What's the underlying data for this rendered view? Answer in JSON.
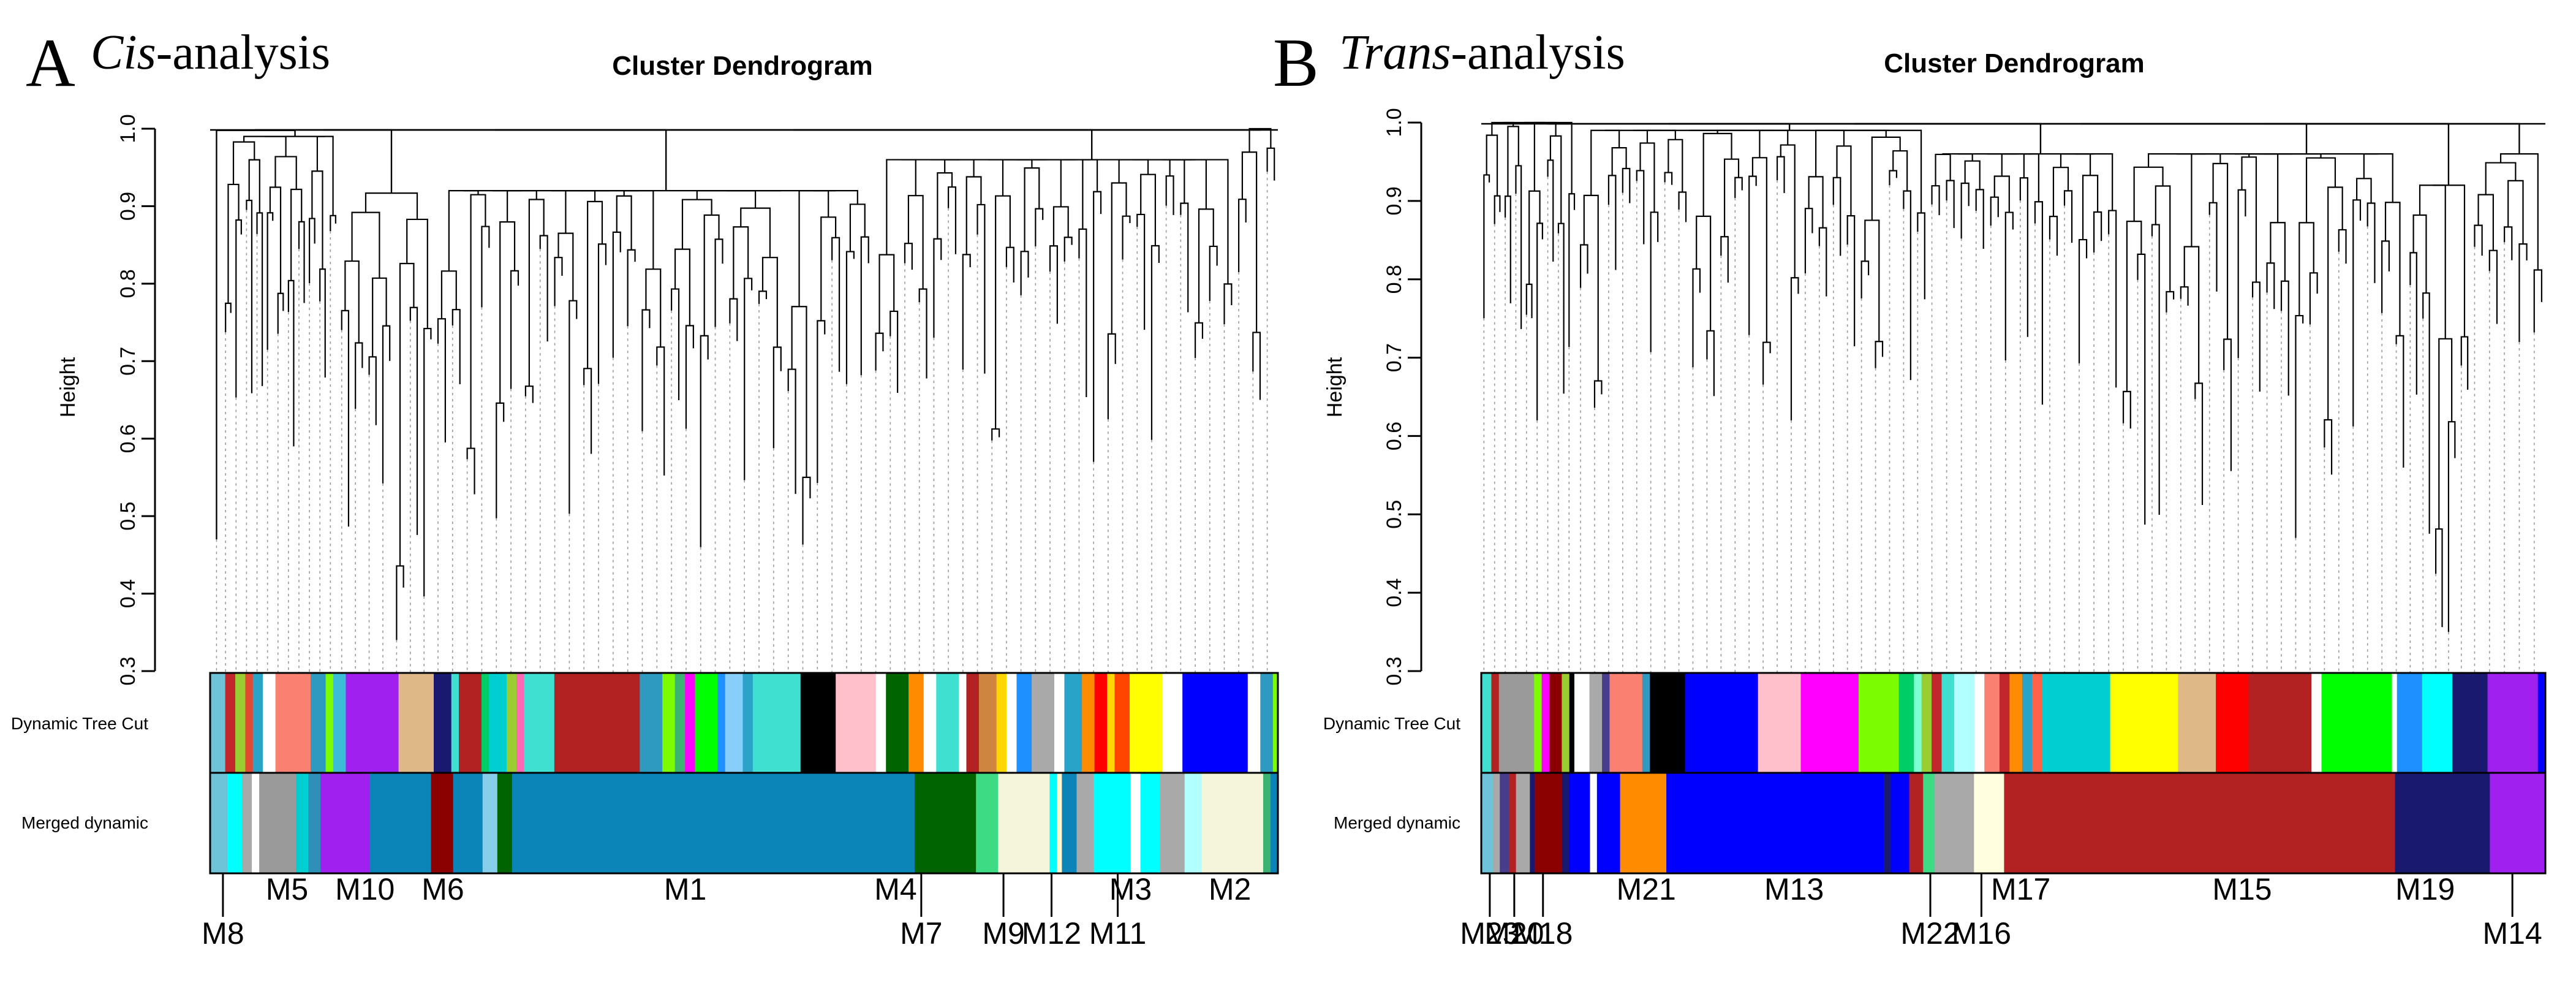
{
  "chart_data": [
    {
      "panel_letter": "A",
      "panel_title_italic": "Cis",
      "panel_title_rest": "-analysis",
      "type": "dendrogram",
      "title": "Cluster Dendrogram",
      "ylabel": "Height",
      "ylim": [
        0.3,
        1.0
      ],
      "yticks": [
        "0.3",
        "0.4",
        "0.5",
        "0.6",
        "0.7",
        "0.8",
        "0.9",
        "1.0"
      ],
      "row_labels": [
        "Dynamic Tree Cut",
        "Merged dynamic"
      ],
      "dendrogram_subtrees": [
        {
          "start": 0.0,
          "end": 0.012,
          "top": 0.98,
          "min": 0.47,
          "branches": 1
        },
        {
          "start": 0.012,
          "end": 0.12,
          "top": 0.99,
          "min": 0.59,
          "branches": 22
        },
        {
          "start": 0.12,
          "end": 0.21,
          "top": 0.92,
          "min": 0.34,
          "branches": 14
        },
        {
          "start": 0.21,
          "end": 0.62,
          "top": 0.92,
          "min": 0.46,
          "branches": 60
        },
        {
          "start": 0.62,
          "end": 0.96,
          "top": 0.96,
          "min": 0.57,
          "branches": 50
        },
        {
          "start": 0.96,
          "end": 1.0,
          "top": 1.0,
          "min": 0.65,
          "branches": 6
        }
      ],
      "dynamic_tree_cut": [
        [
          "#6ec3d8",
          0.012
        ],
        [
          "#c1272d",
          0.008
        ],
        [
          "#9acd32",
          0.008
        ],
        [
          "#e34a33",
          0.006
        ],
        [
          "#2aa3c8",
          0.008
        ],
        [
          "#ffffff",
          0.01
        ],
        [
          "#fa8072",
          0.028
        ],
        [
          "#2e9ac0",
          0.012
        ],
        [
          "#7cfc00",
          0.006
        ],
        [
          "#3bbdd8",
          0.01
        ],
        [
          "#a020f0",
          0.042
        ],
        [
          "#deb887",
          0.028
        ],
        [
          "#191970",
          0.014
        ],
        [
          "#40e0d0",
          0.006
        ],
        [
          "#b22222",
          0.018
        ],
        [
          "#00cd66",
          0.006
        ],
        [
          "#00ced1",
          0.014
        ],
        [
          "#9acd32",
          0.008
        ],
        [
          "#ff69b4",
          0.006
        ],
        [
          "#40e0d0",
          0.024
        ],
        [
          "#b22222",
          0.068
        ],
        [
          "#2e9ac0",
          0.018
        ],
        [
          "#7cfc00",
          0.01
        ],
        [
          "#3cb371",
          0.008
        ],
        [
          "#ff00ff",
          0.008
        ],
        [
          "#00ff00",
          0.018
        ],
        [
          "#1e90ff",
          0.006
        ],
        [
          "#87cefa",
          0.014
        ],
        [
          "#2aa3c8",
          0.008
        ],
        [
          "#40e0d0",
          0.038
        ],
        [
          "#000000",
          0.028
        ],
        [
          "#ffc0cb",
          0.032
        ],
        [
          "#ffffff",
          0.008
        ],
        [
          "#006400",
          0.018
        ],
        [
          "#ff8c00",
          0.012
        ],
        [
          "#ffffff",
          0.01
        ],
        [
          "#40e0d0",
          0.018
        ],
        [
          "#ffffff",
          0.006
        ],
        [
          "#b22222",
          0.01
        ],
        [
          "#cd853f",
          0.014
        ],
        [
          "#ffd700",
          0.008
        ],
        [
          "#ffffff",
          0.008
        ],
        [
          "#1e90ff",
          0.012
        ],
        [
          "#a9a9a9",
          0.018
        ],
        [
          "#ffffff",
          0.008
        ],
        [
          "#2aa3c8",
          0.014
        ],
        [
          "#ff8c00",
          0.01
        ],
        [
          "#ff0000",
          0.01
        ],
        [
          "#ffd700",
          0.006
        ],
        [
          "#ff4500",
          0.012
        ],
        [
          "#ffff00",
          0.026
        ],
        [
          "#ffffff",
          0.016
        ],
        [
          "#0000ff",
          0.052
        ],
        [
          "#ffffff",
          0.01
        ],
        [
          "#2e9ac0",
          0.01
        ],
        [
          "#7cfc00",
          0.004
        ]
      ],
      "merged_dynamic": [
        [
          "#6ec3d8",
          0.014
        ],
        [
          "#00ffff",
          0.012
        ],
        [
          "#a9a9a9",
          0.008
        ],
        [
          "#ffffff",
          0.006
        ],
        [
          "#9a9a9a",
          0.03
        ],
        [
          "#00ced1",
          0.01
        ],
        [
          "#2e8fb8",
          0.01
        ],
        [
          "#a020f0",
          0.04
        ],
        [
          "#0b84b8",
          0.05
        ],
        [
          "#8b0000",
          0.018
        ],
        [
          "#0b84b8",
          0.024
        ],
        [
          "#87ceeb",
          0.012
        ],
        [
          "#006400",
          0.012
        ],
        [
          "#0b84b8",
          0.328
        ],
        [
          "#006400",
          0.05
        ],
        [
          "#3ddc84",
          0.018
        ],
        [
          "#f5f5dc",
          0.042
        ],
        [
          "#00ffff",
          0.006
        ],
        [
          "#fffacd",
          0.004
        ],
        [
          "#0b84b8",
          0.012
        ],
        [
          "#a9a9a9",
          0.014
        ],
        [
          "#00ffff",
          0.03
        ],
        [
          "#ffffff",
          0.008
        ],
        [
          "#00ffff",
          0.016
        ],
        [
          "#a9a9a9",
          0.02
        ],
        [
          "#b2ffff",
          0.014
        ],
        [
          "#f5f5dc",
          0.05
        ],
        [
          "#3cb371",
          0.006
        ],
        [
          "#0b84b8",
          0.006
        ]
      ],
      "modules_top_row": [
        {
          "label": "M5",
          "x": 0.072
        },
        {
          "label": "M10",
          "x": 0.145
        },
        {
          "label": "M6",
          "x": 0.218
        },
        {
          "label": "M1",
          "x": 0.445
        },
        {
          "label": "M4",
          "x": 0.642
        },
        {
          "label": "M3",
          "x": 0.862
        },
        {
          "label": "M2",
          "x": 0.955
        }
      ],
      "modules_bottom_row": [
        {
          "label": "M8",
          "x": 0.012
        },
        {
          "label": "M7",
          "x": 0.666
        },
        {
          "label": "M9",
          "x": 0.743
        },
        {
          "label": "M12",
          "x": 0.788
        },
        {
          "label": "M11",
          "x": 0.85
        }
      ]
    },
    {
      "panel_letter": "B",
      "panel_title_italic": "Trans",
      "panel_title_rest": "-analysis",
      "type": "dendrogram",
      "title": "Cluster Dendrogram",
      "ylabel": "Height",
      "ylim": [
        0.3,
        1.0
      ],
      "yticks": [
        "0.3",
        "0.4",
        "0.5",
        "0.6",
        "0.7",
        "0.8",
        "0.9",
        "1.0"
      ],
      "row_labels": [
        "Dynamic Tree Cut",
        "Merged dynamic"
      ],
      "dendrogram_subtrees": [
        {
          "start": 0.0,
          "end": 0.09,
          "top": 1.0,
          "min": 0.62,
          "branches": 18
        },
        {
          "start": 0.09,
          "end": 0.42,
          "top": 0.99,
          "min": 0.62,
          "branches": 50
        },
        {
          "start": 0.42,
          "end": 0.6,
          "top": 0.96,
          "min": 0.64,
          "branches": 26
        },
        {
          "start": 0.6,
          "end": 0.87,
          "top": 0.96,
          "min": 0.47,
          "branches": 40
        },
        {
          "start": 0.87,
          "end": 0.93,
          "top": 0.92,
          "min": 0.35,
          "branches": 10
        },
        {
          "start": 0.93,
          "end": 1.0,
          "top": 0.96,
          "min": 0.72,
          "branches": 10
        }
      ],
      "dynamic_tree_cut": [
        [
          "#40e0d0",
          0.008
        ],
        [
          "#b22222",
          0.006
        ],
        [
          "#9a9a9a",
          0.028
        ],
        [
          "#7cfc00",
          0.006
        ],
        [
          "#ff00ff",
          0.006
        ],
        [
          "#8b0000",
          0.01
        ],
        [
          "#9acd32",
          0.006
        ],
        [
          "#000000",
          0.004
        ],
        [
          "#ffffff",
          0.012
        ],
        [
          "#a9a9a9",
          0.01
        ],
        [
          "#483d8b",
          0.006
        ],
        [
          "#fa8072",
          0.026
        ],
        [
          "#2e9ac0",
          0.006
        ],
        [
          "#000000",
          0.028
        ],
        [
          "#0000ff",
          0.058
        ],
        [
          "#ffc0cb",
          0.034
        ],
        [
          "#ff00ff",
          0.046
        ],
        [
          "#7cfc00",
          0.032
        ],
        [
          "#00cd66",
          0.012
        ],
        [
          "#7fffd4",
          0.006
        ],
        [
          "#9acd32",
          0.008
        ],
        [
          "#c1272d",
          0.008
        ],
        [
          "#40e0d0",
          0.01
        ],
        [
          "#b2ffff",
          0.016
        ],
        [
          "#ffffff",
          0.008
        ],
        [
          "#fa8072",
          0.012
        ],
        [
          "#c1272d",
          0.008
        ],
        [
          "#ff8c00",
          0.01
        ],
        [
          "#2aa3c8",
          0.008
        ],
        [
          "#ff6347",
          0.008
        ],
        [
          "#00ced1",
          0.054
        ],
        [
          "#ffff00",
          0.054
        ],
        [
          "#deb887",
          0.03
        ],
        [
          "#ff0000",
          0.026
        ],
        [
          "#b22222",
          0.05
        ],
        [
          "#ffffff",
          0.008
        ],
        [
          "#00ff00",
          0.056
        ],
        [
          "#ffffff",
          0.004
        ],
        [
          "#1e90ff",
          0.02
        ],
        [
          "#00ffff",
          0.024
        ],
        [
          "#191970",
          0.028
        ],
        [
          "#a020f0",
          0.04
        ],
        [
          "#0000ff",
          0.006
        ]
      ],
      "merged_dynamic": [
        [
          "#6ec3d8",
          0.01
        ],
        [
          "#a9a9a9",
          0.006
        ],
        [
          "#483d8b",
          0.008
        ],
        [
          "#b22222",
          0.006
        ],
        [
          "#a9a9a9",
          0.012
        ],
        [
          "#191970",
          0.004
        ],
        [
          "#8b0000",
          0.024
        ],
        [
          "#191970",
          0.006
        ],
        [
          "#0000ff",
          0.018
        ],
        [
          "#ffffff",
          0.006
        ],
        [
          "#0000ff",
          0.02
        ],
        [
          "#ff8c00",
          0.04
        ],
        [
          "#0000ff",
          0.188
        ],
        [
          "#191970",
          0.006
        ],
        [
          "#0000ff",
          0.016
        ],
        [
          "#b22222",
          0.012
        ],
        [
          "#3ddc84",
          0.01
        ],
        [
          "#a9a9a9",
          0.034
        ],
        [
          "#ffffe0",
          0.026
        ],
        [
          "#b22222",
          0.338
        ],
        [
          "#191970",
          0.082
        ],
        [
          "#a020f0",
          0.048
        ]
      ],
      "modules_top_row": [
        {
          "label": "M21",
          "x": 0.155
        },
        {
          "label": "M13",
          "x": 0.294
        },
        {
          "label": "M17",
          "x": 0.507
        },
        {
          "label": "M15",
          "x": 0.715
        },
        {
          "label": "M19",
          "x": 0.887
        }
      ],
      "modules_bottom_row": [
        {
          "label": "M23",
          "x": 0.008
        },
        {
          "label": "M20",
          "x": 0.031
        },
        {
          "label": "M18",
          "x": 0.058
        },
        {
          "label": "M22",
          "x": 0.422
        },
        {
          "label": "M16",
          "x": 0.47
        },
        {
          "label": "M14",
          "x": 0.969
        }
      ]
    }
  ]
}
